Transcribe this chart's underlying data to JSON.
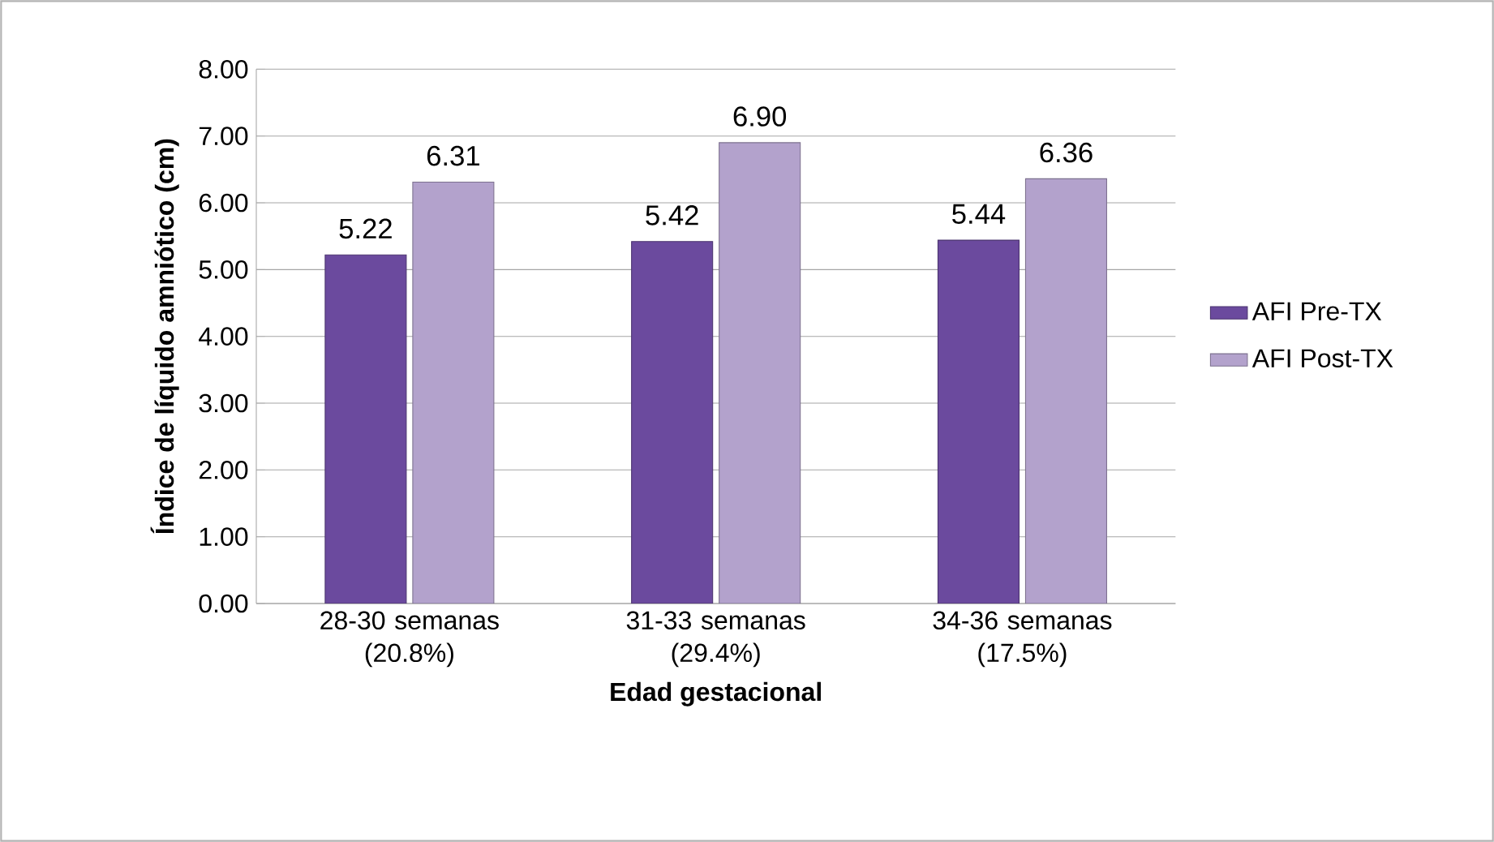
{
  "chart_data": {
    "type": "bar",
    "xlabel": "Edad gestacional",
    "ylabel": "Índice de líquido amniótico (cm)",
    "categories": [
      "28-30 semanas (20.8%)",
      "31-33 semanas (29.4%)",
      "34-36 semanas (17.5%)"
    ],
    "series": [
      {
        "name": "AFI Pre-TX",
        "color": "#6b4a9e",
        "values": [
          5.22,
          5.42,
          5.44
        ],
        "value_labels": [
          "5.22",
          "5.42",
          "5.44"
        ]
      },
      {
        "name": "AFI Post-TX",
        "color": "#b3a2cc",
        "values": [
          6.31,
          6.9,
          6.36
        ],
        "value_labels": [
          "6.31",
          "6.90",
          "6.36"
        ]
      }
    ],
    "ylim": [
      0,
      8
    ],
    "yticks": [
      {
        "value": 0,
        "label": "0.00"
      },
      {
        "value": 1,
        "label": "1.00"
      },
      {
        "value": 2,
        "label": "2.00"
      },
      {
        "value": 3,
        "label": "3.00"
      },
      {
        "value": 4,
        "label": "4.00"
      },
      {
        "value": 5,
        "label": "5.00"
      },
      {
        "value": 6,
        "label": "6.00"
      },
      {
        "value": 7,
        "label": "7.00"
      },
      {
        "value": 8,
        "label": "8.00"
      }
    ],
    "grid": "y",
    "legend": "right"
  }
}
